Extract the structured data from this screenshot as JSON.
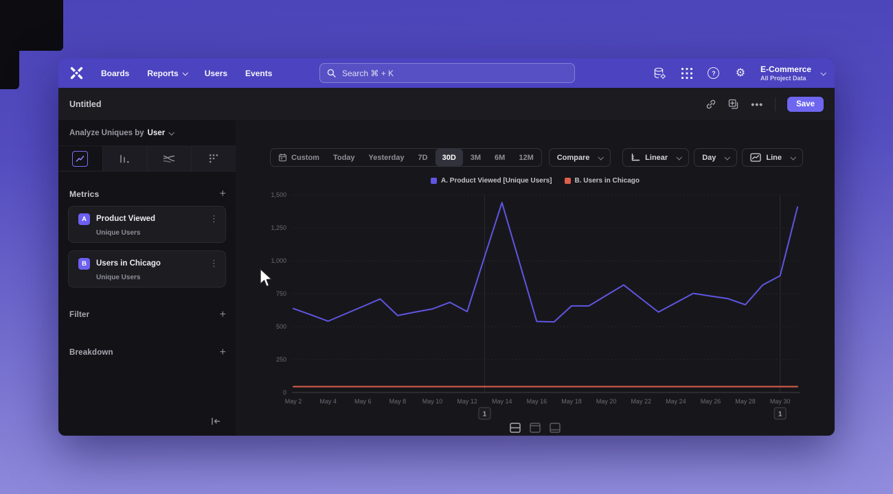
{
  "navbar": {
    "menu": [
      {
        "label": "Boards",
        "chevron": false
      },
      {
        "label": "Reports",
        "chevron": true
      },
      {
        "label": "Users",
        "chevron": false
      },
      {
        "label": "Events",
        "chevron": false
      }
    ],
    "search_placeholder": "Search  ⌘ + K",
    "icons": [
      "data-management-icon",
      "apps-grid-icon",
      "help-icon",
      "settings-gear-icon"
    ],
    "project_name": "E-Commerce",
    "project_subtitle": "All Project Data"
  },
  "titlebar": {
    "title": "Untitled",
    "actions": [
      "link-icon",
      "duplicate-icon",
      "more-icon"
    ],
    "save_label": "Save"
  },
  "sidebar": {
    "analyze_prefix": "Analyze Uniques by",
    "analyze_value": "User",
    "viz_tabs": [
      "insights-line",
      "bar",
      "flow",
      "retention"
    ],
    "active_viz_tab": "insights-line",
    "metrics_header": "Metrics",
    "metrics": [
      {
        "badge": "A",
        "title": "Product Viewed",
        "subtitle": "Unique Users"
      },
      {
        "badge": "B",
        "title": "Users in Chicago",
        "subtitle": "Unique Users"
      }
    ],
    "filter_label": "Filter",
    "breakdown_label": "Breakdown"
  },
  "controls": {
    "date_ranges": [
      "Custom",
      "Today",
      "Yesterday",
      "7D",
      "30D",
      "3M",
      "6M",
      "12M"
    ],
    "active_range": "30D",
    "compare_label": "Compare",
    "scale_label": "Linear",
    "interval_label": "Day",
    "chart_style_label": "Line"
  },
  "footer": {
    "layout_toggles": [
      "split-view",
      "top-view",
      "bottom-view"
    ],
    "active_toggle": "split-view"
  },
  "chart_data": {
    "type": "line",
    "x": [
      "May 2",
      "May 3",
      "May 4",
      "May 5",
      "May 6",
      "May 7",
      "May 8",
      "May 9",
      "May 10",
      "May 11",
      "May 12",
      "May 13",
      "May 14",
      "May 15",
      "May 16",
      "May 17",
      "May 18",
      "May 19",
      "May 20",
      "May 21",
      "May 22",
      "May 23",
      "May 24",
      "May 25",
      "May 26",
      "May 27",
      "May 28",
      "May 29",
      "May 30",
      "May 31"
    ],
    "series": [
      {
        "name": "A. Product Viewed [Unique Users]",
        "color": "#6055e2",
        "values": [
          637,
          590,
          541,
          597,
          653,
          710,
          584,
          610,
          634,
          684,
          614,
          1030,
          1441,
          990,
          539,
          536,
          657,
          657,
          737,
          816,
          713,
          610,
          681,
          752,
          732,
          712,
          666,
          816,
          886,
          1407
        ]
      },
      {
        "name": "B. Users in Chicago",
        "color": "#de5f4c",
        "values": [
          44,
          44,
          44,
          44,
          44,
          44,
          44,
          44,
          44,
          44,
          44,
          44,
          44,
          44,
          44,
          44,
          44,
          44,
          44,
          44,
          44,
          44,
          44,
          44,
          44,
          44,
          44,
          44,
          44,
          44
        ]
      }
    ],
    "ylim": [
      0,
      1500
    ],
    "yticks": [
      "0",
      "250",
      "500",
      "750",
      "1,000",
      "1,250",
      "1,500"
    ],
    "xtick_every": 2,
    "grid": "horizontal-dashed",
    "legend_position": "top-center",
    "annotations": [
      {
        "label": "1",
        "index": 11
      },
      {
        "label": "1",
        "index": 28
      }
    ]
  }
}
